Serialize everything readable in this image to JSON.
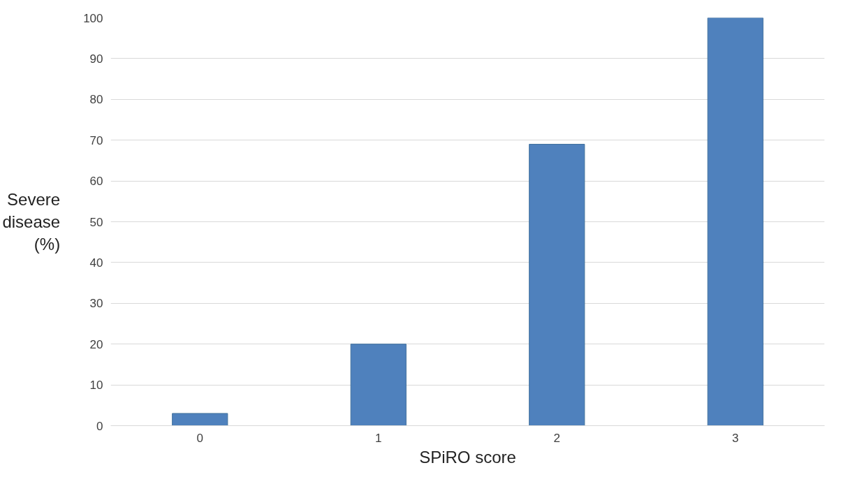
{
  "chart_data": {
    "type": "bar",
    "xlabel": "SPiRO score",
    "ylabel": "Severe disease (%)",
    "categories": [
      "0",
      "1",
      "2",
      "3"
    ],
    "values": [
      3,
      20,
      69,
      100
    ],
    "color": "#4f81bd",
    "ylim": [
      0,
      100
    ],
    "yticks": [
      0,
      10,
      20,
      30,
      40,
      50,
      60,
      70,
      80,
      90,
      100
    ],
    "grid": "y"
  }
}
